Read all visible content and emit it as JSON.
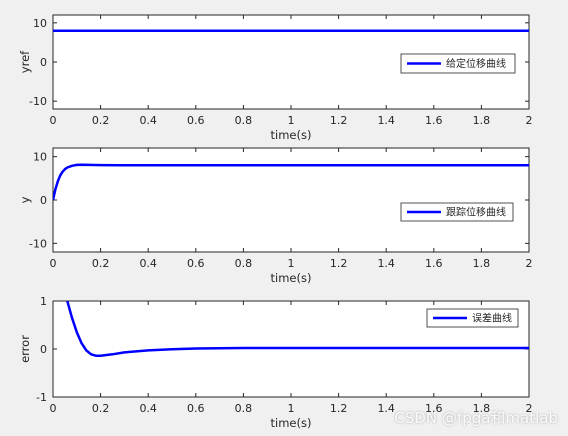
{
  "chart_data": [
    {
      "type": "line",
      "ylabel": "yref",
      "xlabel": "time(s)",
      "xlim": [
        0,
        2
      ],
      "ylim": [
        -12,
        12
      ],
      "xticks": [
        "0",
        "0.2",
        "0.4",
        "0.6",
        "0.8",
        "1",
        "1.2",
        "1.4",
        "1.6",
        "1.8",
        "2"
      ],
      "yticks": [
        "10",
        "0",
        "-10"
      ],
      "ytick_values": [
        10,
        0,
        -10
      ],
      "legend": "给定位移曲线",
      "legend_position": "right",
      "grid": false,
      "series": [
        {
          "name": "给定位移曲线",
          "x": [
            0,
            2
          ],
          "y": [
            8,
            8
          ]
        }
      ]
    },
    {
      "type": "line",
      "ylabel": "y",
      "xlabel": "time(s)",
      "xlim": [
        0,
        2
      ],
      "ylim": [
        -12,
        12
      ],
      "xticks": [
        "0",
        "0.2",
        "0.4",
        "0.6",
        "0.8",
        "1",
        "1.2",
        "1.4",
        "1.6",
        "1.8",
        "2"
      ],
      "yticks": [
        "10",
        "0",
        "-10"
      ],
      "ytick_values": [
        10,
        0,
        -10
      ],
      "legend": "跟踪位移曲线",
      "legend_position": "right",
      "grid": false,
      "series": [
        {
          "name": "跟踪位移曲线",
          "x": [
            0,
            0.01,
            0.02,
            0.03,
            0.04,
            0.05,
            0.06,
            0.08,
            0.1,
            0.12,
            0.15,
            0.2,
            0.3,
            0.5,
            1.0,
            2.0
          ],
          "y": [
            0,
            2.5,
            4.3,
            5.6,
            6.5,
            7.1,
            7.5,
            7.9,
            8.1,
            8.15,
            8.1,
            8.05,
            8.0,
            8.0,
            8.0,
            8.0
          ]
        }
      ]
    },
    {
      "type": "line",
      "ylabel": "error",
      "xlabel": "time(s)",
      "xlim": [
        0,
        2
      ],
      "ylim": [
        -1,
        1
      ],
      "xticks": [
        "0",
        "0.2",
        "0.4",
        "0.6",
        "0.8",
        "1",
        "1.2",
        "1.4",
        "1.6",
        "1.8",
        "2"
      ],
      "yticks": [
        "1",
        "0",
        "-1"
      ],
      "ytick_values": [
        1,
        0,
        -1
      ],
      "legend": "误差曲线",
      "legend_position": "top-right",
      "grid": false,
      "series": [
        {
          "name": "误差曲线",
          "x": [
            0.06,
            0.08,
            0.1,
            0.12,
            0.14,
            0.16,
            0.18,
            0.2,
            0.25,
            0.3,
            0.4,
            0.5,
            0.6,
            0.8,
            1.0,
            1.5,
            2.0
          ],
          "y": [
            1.0,
            0.65,
            0.35,
            0.12,
            -0.03,
            -0.11,
            -0.14,
            -0.14,
            -0.11,
            -0.07,
            -0.03,
            -0.005,
            0.01,
            0.02,
            0.02,
            0.02,
            0.02
          ]
        }
      ]
    }
  ],
  "colors": {
    "line": "#0000ff",
    "axis": "#262626",
    "plot_bg": "#ffffff",
    "figure_bg": "#f0f0f0"
  },
  "watermark": "CSDN @fpga和matlab"
}
